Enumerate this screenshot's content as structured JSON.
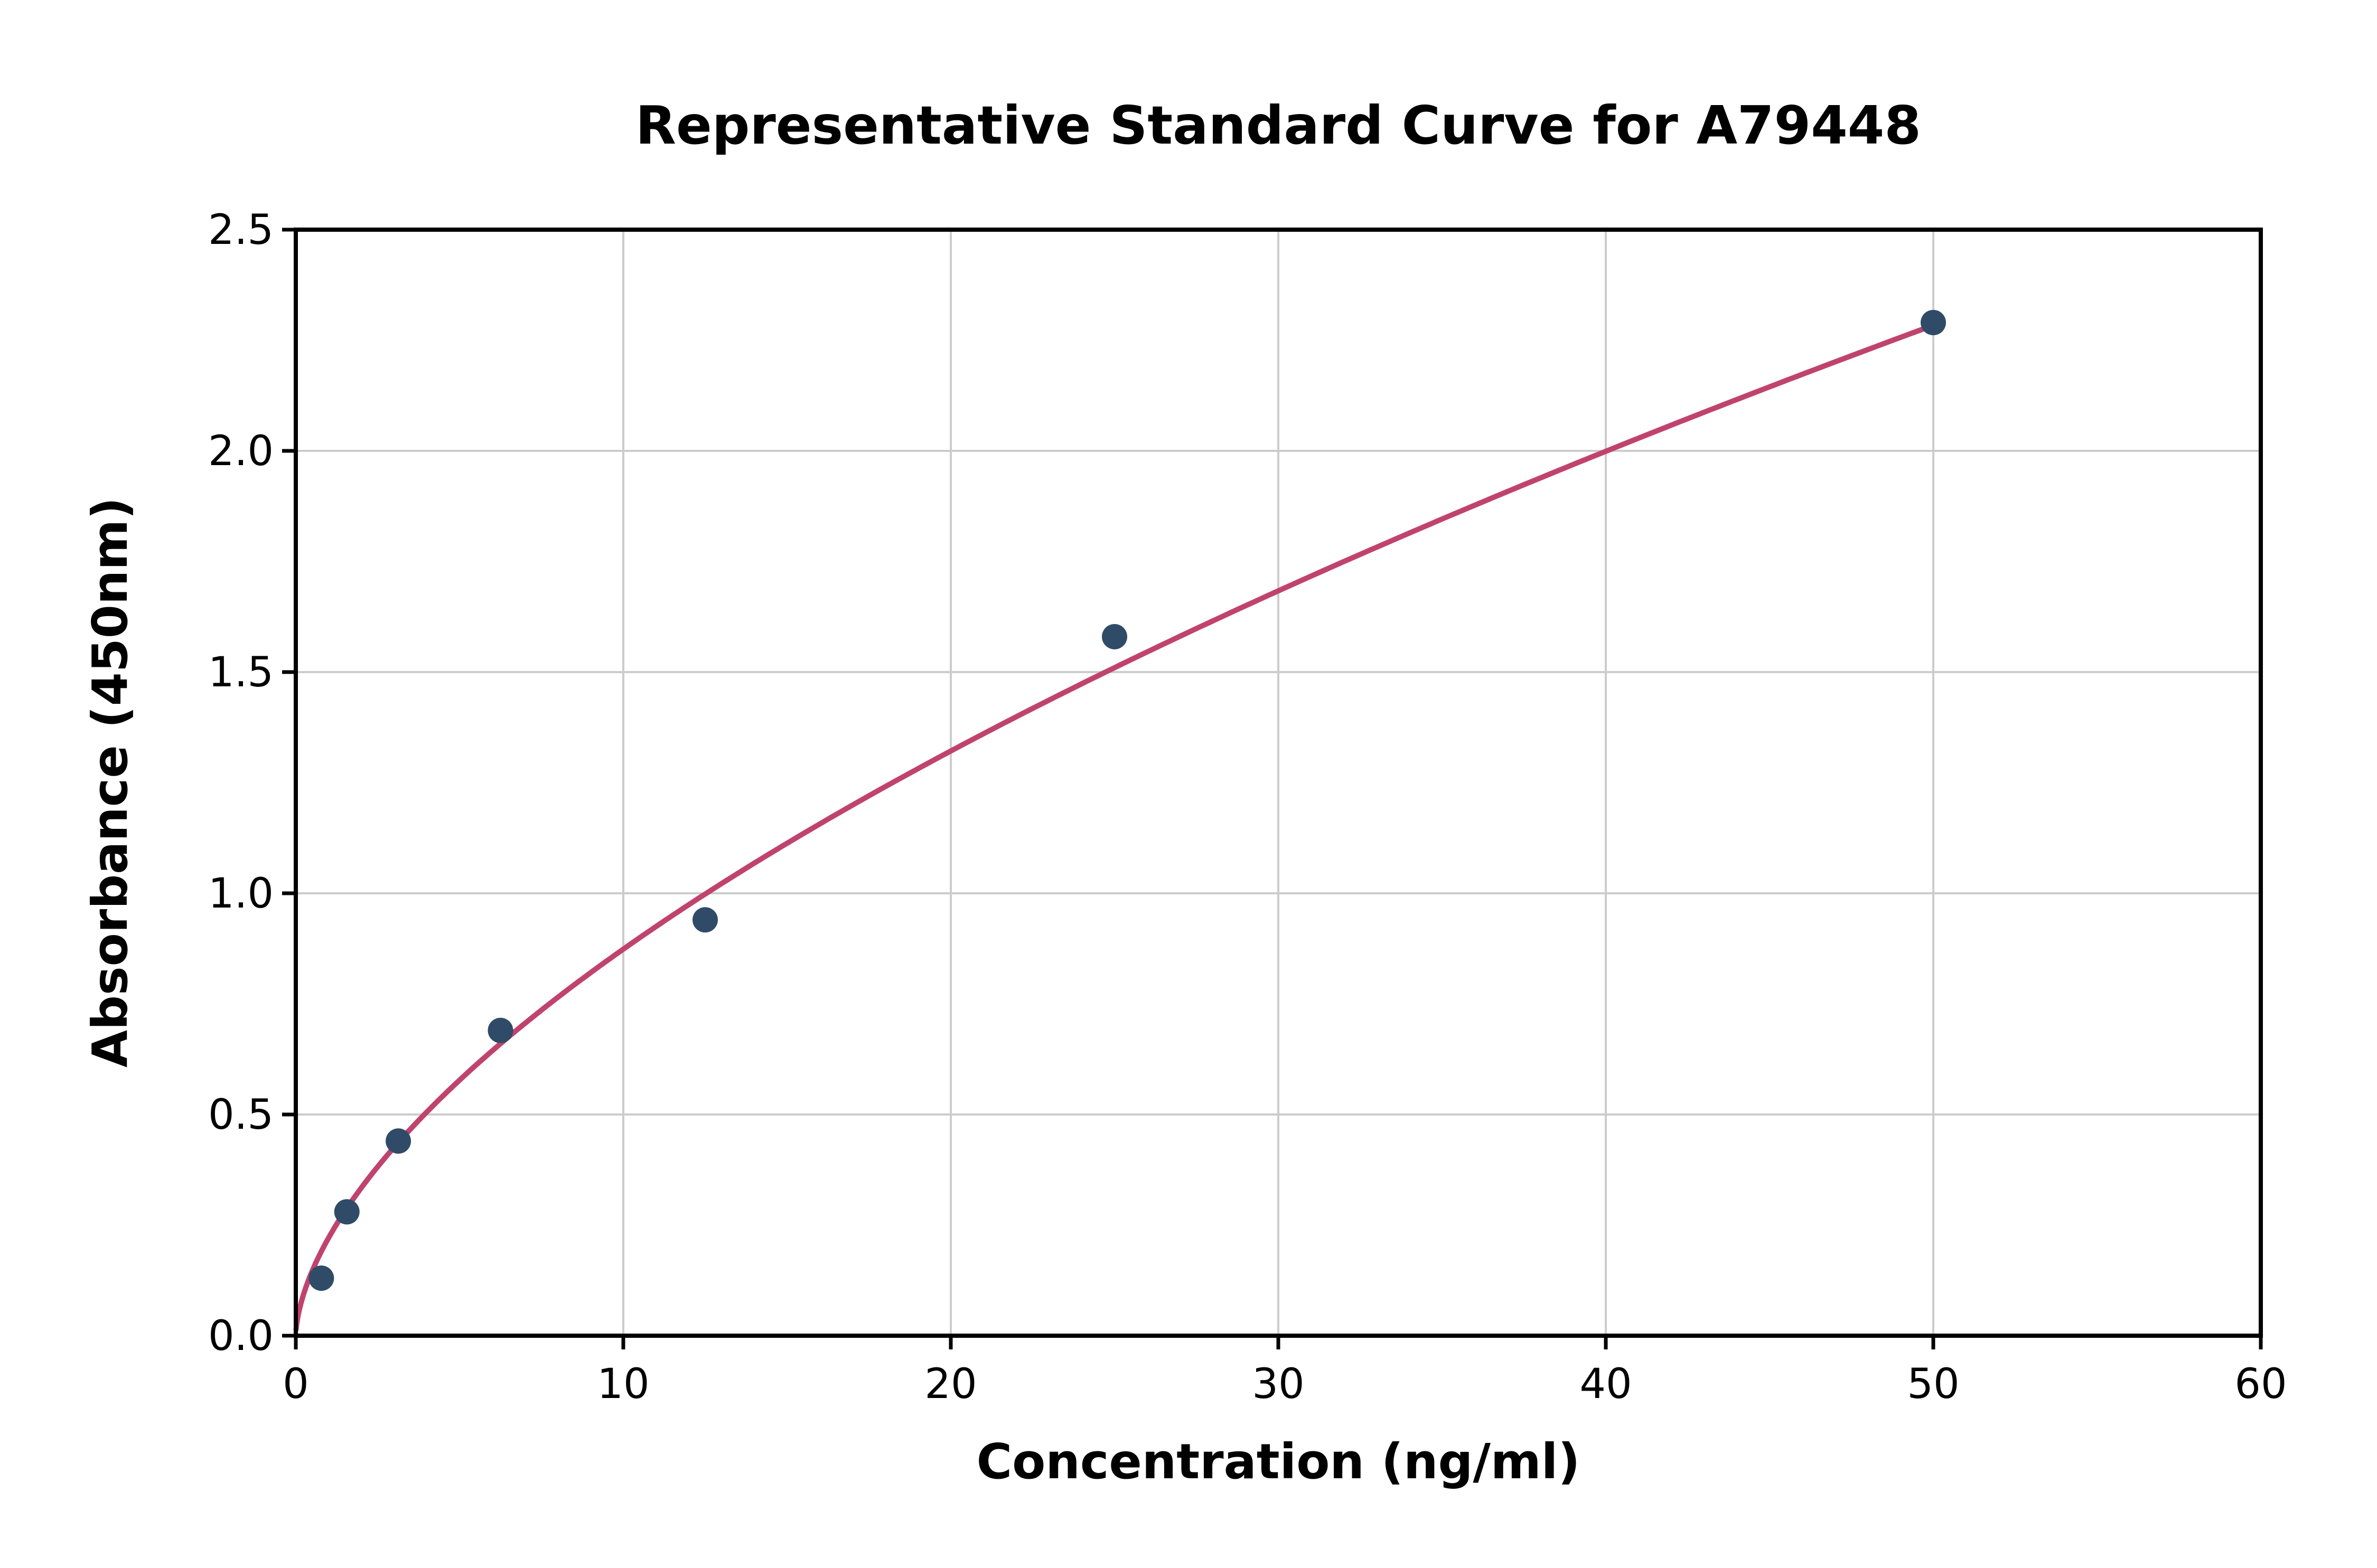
{
  "chart_data": {
    "type": "scatter",
    "title": "Representative Standard Curve for A79448",
    "xlabel": "Concentration (ng/ml)",
    "ylabel": "Absorbance (450nm)",
    "xlim": [
      0,
      60
    ],
    "ylim": [
      0,
      2.5
    ],
    "x_ticks": [
      0,
      10,
      20,
      30,
      40,
      50,
      60
    ],
    "x_tick_labels": [
      "0",
      "10",
      "20",
      "30",
      "40",
      "50",
      "60"
    ],
    "y_ticks": [
      0.0,
      0.5,
      1.0,
      1.5,
      2.0,
      2.5
    ],
    "y_tick_labels": [
      "0.0",
      "0.5",
      "1.0",
      "1.5",
      "2.0",
      "2.5"
    ],
    "grid": true,
    "legend": "none",
    "points": [
      {
        "x": 0.78,
        "y": 0.13
      },
      {
        "x": 1.56,
        "y": 0.28
      },
      {
        "x": 3.13,
        "y": 0.44
      },
      {
        "x": 6.25,
        "y": 0.69
      },
      {
        "x": 12.5,
        "y": 0.94
      },
      {
        "x": 25,
        "y": 1.58
      },
      {
        "x": 50,
        "y": 2.29
      }
    ],
    "fit_curve": {
      "type": "power",
      "a": 0.221,
      "b": 0.597,
      "x_start": 0.01,
      "x_end": 50
    },
    "colors": {
      "points": "#2f4b68",
      "curve": "#c0436e",
      "grid": "#cccccc",
      "axis": "#000000",
      "background": "#ffffff"
    }
  }
}
